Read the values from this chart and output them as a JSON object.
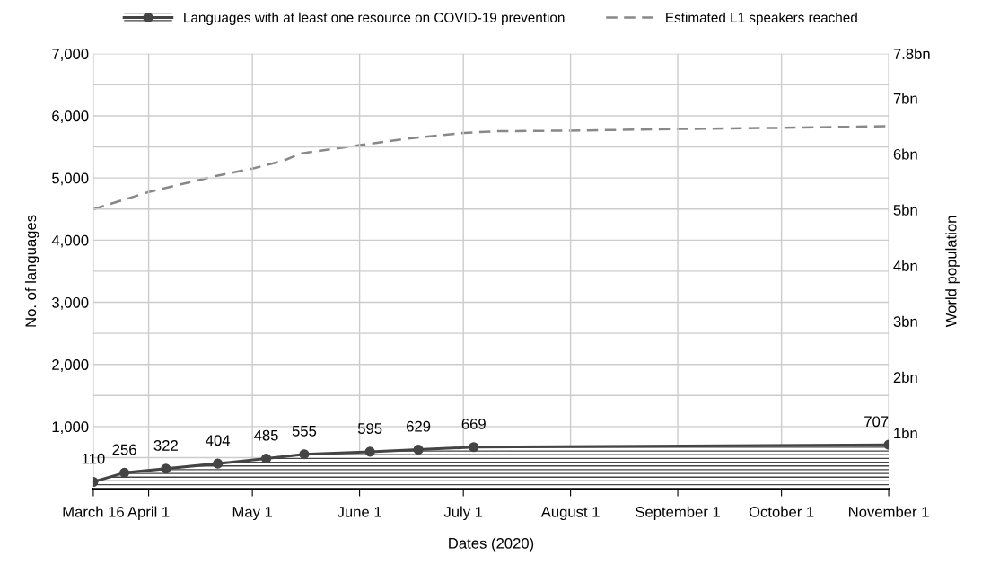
{
  "chart_data": {
    "type": "line",
    "xlabel": "Dates (2020)",
    "ylabel": "No. of languages",
    "y2label": "World population",
    "xlim": [
      "2020-03-16",
      "2020-11-01"
    ],
    "xticks": [
      {
        "value": "2020-03-16",
        "label": "March 16"
      },
      {
        "value": "2020-04-01",
        "label": "April 1"
      },
      {
        "value": "2020-05-01",
        "label": "May 1"
      },
      {
        "value": "2020-06-01",
        "label": "June 1"
      },
      {
        "value": "2020-07-01",
        "label": "July 1"
      },
      {
        "value": "2020-08-01",
        "label": "August 1"
      },
      {
        "value": "2020-09-01",
        "label": "September 1"
      },
      {
        "value": "2020-10-01",
        "label": "October 1"
      },
      {
        "value": "2020-11-01",
        "label": "November 1"
      }
    ],
    "ylim": [
      0,
      7000
    ],
    "yticks": [
      {
        "value": 500,
        "label": null
      },
      {
        "value": 1000,
        "label": "1,000"
      },
      {
        "value": 1500,
        "label": null
      },
      {
        "value": 2000,
        "label": "2,000"
      },
      {
        "value": 2500,
        "label": null
      },
      {
        "value": 3000,
        "label": "3,000"
      },
      {
        "value": 3500,
        "label": null
      },
      {
        "value": 4000,
        "label": "4,000"
      },
      {
        "value": 4500,
        "label": null
      },
      {
        "value": 5000,
        "label": "5,000"
      },
      {
        "value": 5500,
        "label": null
      },
      {
        "value": 6000,
        "label": "6,000"
      },
      {
        "value": 6500,
        "label": null
      },
      {
        "value": 7000,
        "label": "7,000"
      }
    ],
    "y2lim": [
      0,
      7.8
    ],
    "y2ticks": [
      {
        "value": 1,
        "label": "1bn"
      },
      {
        "value": 2,
        "label": "2bn"
      },
      {
        "value": 3,
        "label": "3bn"
      },
      {
        "value": 4,
        "label": "4bn"
      },
      {
        "value": 5,
        "label": "5bn"
      },
      {
        "value": 6,
        "label": "6bn"
      },
      {
        "value": 7,
        "label": "7bn"
      },
      {
        "value": 7.8,
        "label": "7.8bn"
      }
    ],
    "grid": true,
    "legend": "top",
    "series": [
      {
        "name": "Languages with at least one resource on COVID-19 prevention",
        "type": "area",
        "color": "#444444",
        "marker": "circle",
        "line_style": "solid",
        "x": [
          "2020-03-16",
          "2020-03-25",
          "2020-04-06",
          "2020-04-21",
          "2020-05-05",
          "2020-05-16",
          "2020-06-04",
          "2020-06-18",
          "2020-07-04",
          "2020-11-01"
        ],
        "values": [
          110,
          256,
          322,
          404,
          485,
          555,
          595,
          629,
          669,
          707
        ],
        "value_labels": [
          "110",
          "256",
          "322",
          "404",
          "485",
          "555",
          "595",
          "629",
          "669",
          "707"
        ]
      },
      {
        "name": "Estimated L1 speakers reached",
        "axis": "y2",
        "color": "#888888",
        "marker": "none",
        "line_style": "dashed",
        "x": [
          "2020-03-16",
          "2020-04-01",
          "2020-04-20",
          "2020-05-01",
          "2020-05-10",
          "2020-05-15",
          "2020-06-01",
          "2020-06-15",
          "2020-07-01",
          "2020-07-11",
          "2020-08-01",
          "2020-09-01",
          "2020-10-01",
          "2020-11-01"
        ],
        "values": [
          5.01,
          5.32,
          5.6,
          5.74,
          5.88,
          6.01,
          6.16,
          6.28,
          6.38,
          6.41,
          6.42,
          6.45,
          6.47,
          6.5
        ]
      }
    ]
  }
}
